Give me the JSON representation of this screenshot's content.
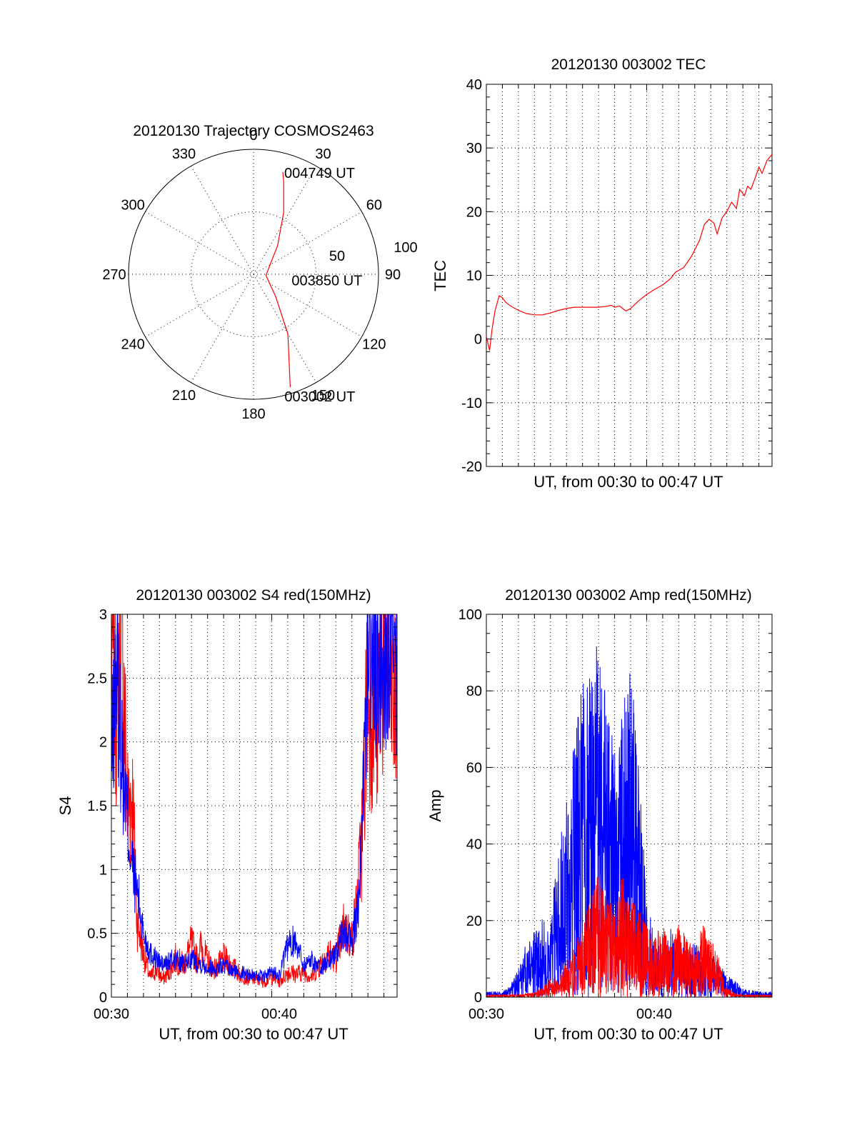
{
  "chart_data": [
    {
      "type": "polar",
      "title": "20120130 Trajectory COSMOS2463",
      "azimuth_labels": [
        "0",
        "30",
        "60",
        "90",
        "120",
        "150",
        "180",
        "210",
        "240",
        "270",
        "300",
        "330"
      ],
      "radial_labels": [
        "50",
        "100"
      ],
      "radial_max": 100,
      "grid": true,
      "series": [
        {
          "color": "#ff0000",
          "points": [
            {
              "az": 162,
              "r": 95
            },
            {
              "az": 150,
              "r": 55
            },
            {
              "az": 135,
              "r": 25
            },
            {
              "az": 95,
              "r": 10
            },
            {
              "az": 40,
              "r": 30
            },
            {
              "az": 26,
              "r": 55
            },
            {
              "az": 18,
              "r": 78
            },
            {
              "az": 16,
              "r": 85
            }
          ]
        }
      ],
      "annotations": [
        {
          "text": "004749 UT",
          "az": 16,
          "r": 85
        },
        {
          "text": "003850 UT",
          "az": 95,
          "r": 10
        },
        {
          "text": "003002 UT",
          "az": 162,
          "r": 95
        }
      ]
    },
    {
      "type": "line",
      "title": "20120130 003002 TEC",
      "xlabel": "UT, from 00:30 to 00:47 UT",
      "ylabel": "TEC",
      "xlim": [
        30.0,
        47.82
      ],
      "ylim": [
        -20,
        40
      ],
      "yticks": [
        "-20",
        "-10",
        "0",
        "10",
        "20",
        "30",
        "40"
      ],
      "grid": true,
      "series": [
        {
          "color": "#ff0000",
          "x": [
            30.0,
            30.2,
            30.35,
            30.55,
            30.8,
            31.0,
            31.2,
            31.5,
            32.0,
            32.5,
            33.0,
            33.5,
            34.0,
            34.5,
            35.0,
            35.5,
            36.0,
            36.5,
            37.0,
            37.4,
            37.8,
            38.0,
            38.3,
            38.7,
            39.0,
            39.5,
            40.0,
            40.5,
            41.0,
            41.5,
            41.8,
            42.3,
            42.8,
            43.3,
            43.6,
            43.9,
            44.2,
            44.4,
            44.7,
            45.0,
            45.3,
            45.6,
            45.8,
            46.1,
            46.3,
            46.5,
            46.8,
            47.0,
            47.2,
            47.5,
            47.82
          ],
          "y": [
            0.5,
            -1.8,
            1.5,
            4.5,
            6.8,
            6.5,
            5.8,
            5.2,
            4.5,
            4.0,
            3.8,
            3.8,
            4.1,
            4.5,
            4.8,
            5.0,
            5.0,
            5.0,
            5.0,
            5.1,
            5.3,
            5.0,
            5.2,
            4.4,
            4.8,
            6.0,
            7.0,
            7.8,
            8.5,
            9.5,
            10.5,
            11.2,
            13.0,
            15.5,
            18.0,
            18.8,
            18.2,
            16.5,
            19.0,
            20.0,
            21.5,
            20.5,
            23.5,
            22.5,
            24.0,
            23.5,
            25.5,
            27.0,
            26.0,
            28.0,
            29.0
          ]
        }
      ]
    },
    {
      "type": "line",
      "title": "20120130 003002 S4 red(150MHz)",
      "xlabel": "UT, from 00:30 to 00:47 UT",
      "ylabel": "S4",
      "xlim": [
        30.0,
        47.82
      ],
      "ylim": [
        0,
        3
      ],
      "xticks": [
        "00:30",
        "00:40"
      ],
      "yticks": [
        "0",
        "0.5",
        "1",
        "1.5",
        "2",
        "2.5",
        "3"
      ],
      "grid": true,
      "series": [
        {
          "color": "#ff0000",
          "x": [
            30.0,
            30.3,
            30.6,
            31.0,
            31.3,
            31.6,
            32.0,
            32.4,
            32.8,
            33.2,
            33.6,
            34.0,
            34.5,
            35.0,
            35.3,
            35.6,
            36.0,
            36.5,
            37.0,
            37.5,
            38.0,
            38.5,
            39.0,
            39.5,
            40.0,
            40.5,
            41.0,
            41.5,
            42.0,
            42.5,
            43.0,
            43.5,
            44.0,
            44.5,
            45.0,
            45.3,
            45.6,
            46.0,
            46.5,
            47.0,
            47.5,
            47.82
          ],
          "y": [
            2.8,
            2.4,
            3.0,
            1.5,
            1.6,
            0.6,
            0.35,
            0.15,
            0.22,
            0.14,
            0.2,
            0.3,
            0.25,
            0.42,
            0.3,
            0.4,
            0.28,
            0.22,
            0.3,
            0.25,
            0.18,
            0.15,
            0.14,
            0.12,
            0.16,
            0.12,
            0.2,
            0.18,
            0.2,
            0.16,
            0.25,
            0.35,
            0.3,
            0.55,
            0.45,
            0.7,
            1.2,
            2.5,
            2.2,
            2.8,
            2.4,
            2.3
          ]
        },
        {
          "color": "#0000ff",
          "x": [
            30.0,
            30.3,
            30.6,
            31.0,
            31.3,
            31.6,
            32.0,
            32.4,
            32.8,
            33.2,
            33.6,
            34.0,
            34.5,
            35.0,
            35.3,
            35.6,
            36.0,
            36.5,
            37.0,
            37.5,
            38.0,
            38.5,
            39.0,
            39.5,
            40.0,
            40.5,
            41.0,
            41.5,
            42.0,
            42.5,
            43.0,
            43.5,
            44.0,
            44.5,
            45.0,
            45.3,
            45.6,
            46.0,
            46.5,
            47.0,
            47.5,
            47.82
          ],
          "y": [
            1.8,
            2.6,
            2.0,
            1.4,
            1.0,
            0.85,
            0.5,
            0.35,
            0.3,
            0.25,
            0.28,
            0.3,
            0.25,
            0.3,
            0.28,
            0.26,
            0.24,
            0.22,
            0.25,
            0.2,
            0.2,
            0.18,
            0.17,
            0.16,
            0.2,
            0.18,
            0.4,
            0.45,
            0.25,
            0.3,
            0.22,
            0.28,
            0.35,
            0.5,
            0.45,
            0.6,
            1.1,
            2.8,
            2.5,
            2.7,
            2.6,
            2.4
          ]
        }
      ]
    },
    {
      "type": "line",
      "title": "20120130 003002 Amp red(150MHz)",
      "xlabel": "UT, from 00:30 to 00:47 UT",
      "ylabel": "Amp",
      "xlim": [
        30.0,
        47.82
      ],
      "ylim": [
        0,
        100
      ],
      "xticks": [
        "00:30",
        "00:40"
      ],
      "yticks": [
        "0",
        "20",
        "40",
        "60",
        "80",
        "100"
      ],
      "grid": true,
      "series": [
        {
          "color": "#ff0000",
          "x": [
            30.0,
            31.0,
            32.0,
            33.0,
            33.5,
            34.0,
            34.5,
            35.0,
            35.5,
            36.0,
            36.5,
            37.0,
            37.5,
            38.0,
            38.5,
            39.0,
            39.5,
            40.0,
            40.5,
            41.0,
            41.5,
            42.0,
            42.5,
            43.0,
            43.5,
            44.0,
            44.5,
            45.0,
            45.5,
            46.0,
            47.0,
            47.82
          ],
          "y": [
            0.5,
            0.5,
            0.6,
            1.0,
            2.0,
            4.0,
            5.0,
            7.0,
            10.0,
            15.0,
            20.0,
            25.0,
            20.0,
            18.0,
            25.0,
            20.0,
            18.0,
            15.0,
            12.0,
            15.0,
            10.0,
            15.0,
            12.0,
            10.0,
            15.0,
            12.0,
            8.0,
            2.0,
            1.0,
            0.5,
            0.5,
            0.5
          ]
        },
        {
          "color": "#0000ff",
          "x": [
            30.0,
            31.0,
            31.5,
            32.0,
            32.5,
            33.0,
            33.5,
            34.0,
            34.5,
            35.0,
            35.5,
            36.0,
            36.5,
            37.0,
            37.5,
            38.0,
            38.5,
            39.0,
            39.5,
            40.0,
            40.5,
            41.0,
            41.5,
            42.0,
            42.5,
            43.0,
            43.5,
            44.0,
            44.5,
            45.0,
            45.5,
            46.0,
            47.0,
            47.82
          ],
          "y": [
            1.0,
            1.0,
            2.0,
            5.0,
            10.0,
            12.0,
            14.0,
            15.0,
            25.0,
            35.0,
            45.0,
            55.0,
            60.0,
            65.0,
            50.0,
            45.0,
            50.0,
            60.0,
            40.0,
            20.0,
            10.0,
            8.0,
            12.0,
            10.0,
            8.0,
            10.0,
            7.0,
            8.0,
            6.0,
            4.0,
            3.0,
            1.5,
            1.0,
            1.0
          ]
        }
      ]
    }
  ]
}
